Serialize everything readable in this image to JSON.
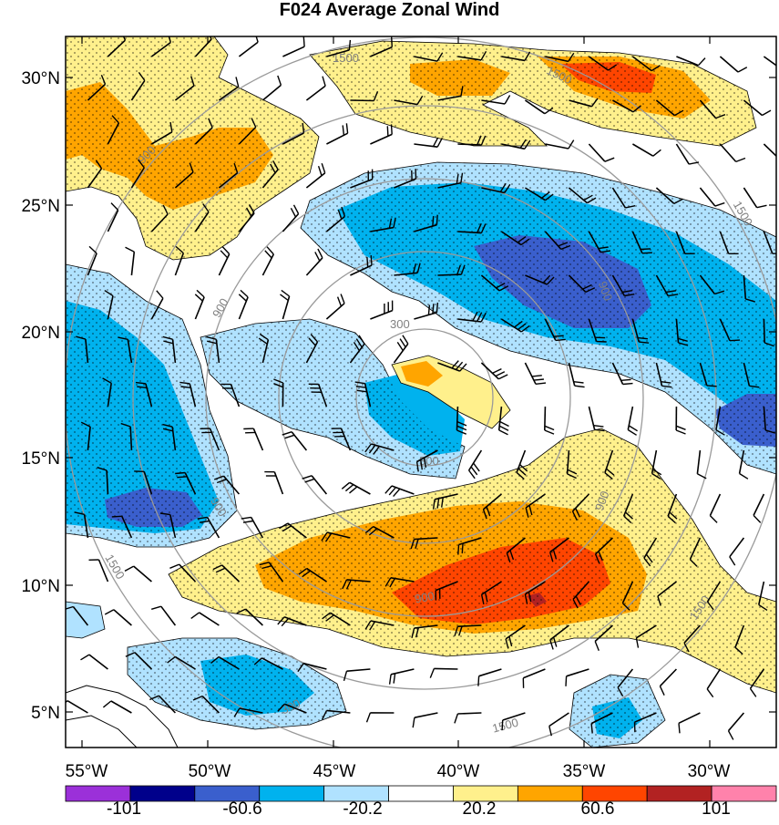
{
  "title": "F024 Average Zonal Wind",
  "lat_labels": [
    "30°N",
    "25°N",
    "20°N",
    "15°N",
    "10°N",
    "5°N"
  ],
  "lon_labels": [
    "55°W",
    "50°W",
    "45°W",
    "40°W",
    "35°W",
    "30°W"
  ],
  "ring_labels": [
    "300",
    "900",
    "1500",
    "300",
    "900",
    "1500",
    "900",
    "1500",
    "900",
    "1500",
    "300",
    "900",
    "1500",
    "900",
    "1500"
  ],
  "colorbar": {
    "colors": [
      "#9b30d9",
      "#00008b",
      "#3a5fcd",
      "#00b2ee",
      "#b0e2ff",
      "#ffffff",
      "#fff08c",
      "#ffa500",
      "#ff4500",
      "#b22222",
      "#ff82ab"
    ],
    "tick_labels": [
      "-101",
      "-60.6",
      "-20.2",
      "20.2",
      "60.6",
      "101"
    ]
  },
  "colors": {
    "ring_stroke": "#9a9a9a",
    "coast": "#000000",
    "barb": "#000000"
  }
}
